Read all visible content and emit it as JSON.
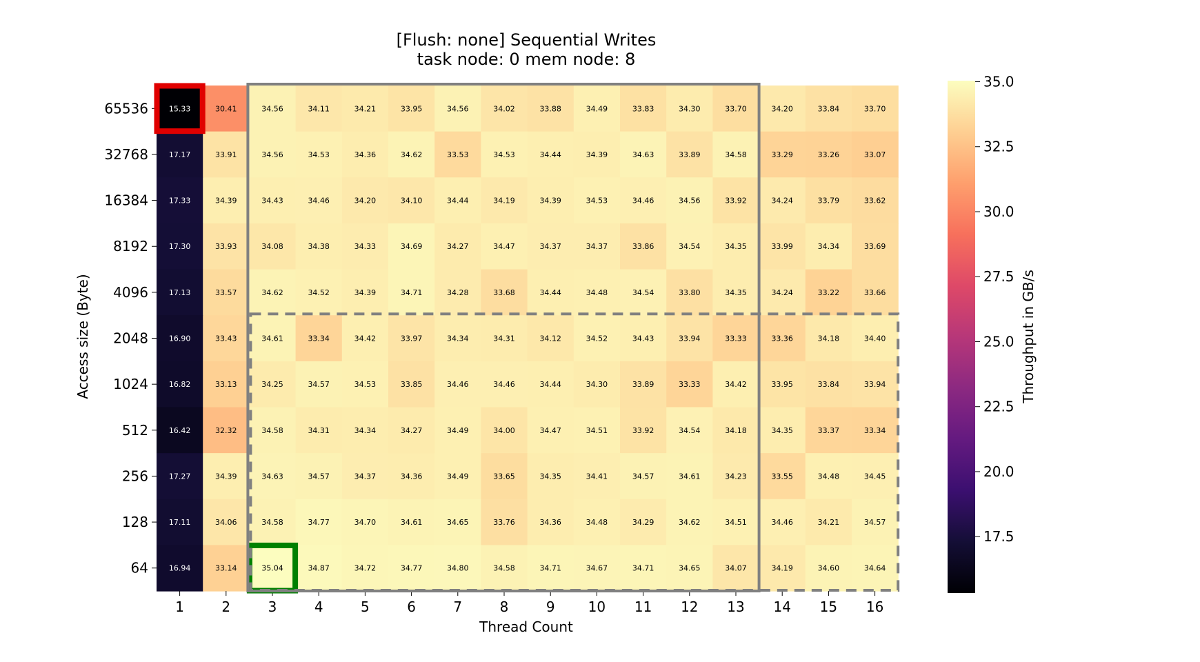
{
  "chart_data": {
    "type": "heatmap",
    "title": [
      "[Flush: none] Sequential Writes",
      "task node: 0 mem node: 8"
    ],
    "xlabel": "Thread Count",
    "ylabel": "Access size (Byte)",
    "x": [
      "1",
      "2",
      "3",
      "4",
      "5",
      "6",
      "7",
      "8",
      "9",
      "10",
      "11",
      "12",
      "13",
      "14",
      "15",
      "16"
    ],
    "y": [
      "65536",
      "32768",
      "16384",
      "8192",
      "4096",
      "2048",
      "1024",
      "512",
      "256",
      "128",
      "64"
    ],
    "values": [
      [
        15.33,
        30.41,
        34.56,
        34.11,
        34.21,
        33.95,
        34.56,
        34.02,
        33.88,
        34.49,
        33.83,
        34.3,
        33.7,
        34.2,
        33.84,
        33.7
      ],
      [
        17.17,
        33.91,
        34.56,
        34.53,
        34.36,
        34.62,
        33.53,
        34.53,
        34.44,
        34.39,
        34.63,
        33.89,
        34.58,
        33.29,
        33.26,
        33.07
      ],
      [
        17.33,
        34.39,
        34.43,
        34.46,
        34.2,
        34.1,
        34.44,
        34.19,
        34.39,
        34.53,
        34.46,
        34.56,
        33.92,
        34.24,
        33.79,
        33.62
      ],
      [
        17.3,
        33.93,
        34.08,
        34.38,
        34.33,
        34.69,
        34.27,
        34.47,
        34.37,
        34.37,
        33.86,
        34.54,
        34.35,
        33.99,
        34.34,
        33.69
      ],
      [
        17.13,
        33.57,
        34.62,
        34.52,
        34.39,
        34.71,
        34.28,
        33.68,
        34.44,
        34.48,
        34.54,
        33.8,
        34.35,
        34.24,
        33.22,
        33.66
      ],
      [
        16.9,
        33.43,
        34.61,
        33.34,
        34.42,
        33.97,
        34.34,
        34.31,
        34.12,
        34.52,
        34.43,
        33.94,
        33.33,
        33.36,
        34.18,
        34.4
      ],
      [
        16.82,
        33.13,
        34.25,
        34.57,
        34.53,
        33.85,
        34.46,
        34.46,
        34.44,
        34.3,
        33.89,
        33.33,
        34.42,
        33.95,
        33.84,
        33.94
      ],
      [
        16.42,
        32.32,
        34.58,
        34.31,
        34.34,
        34.27,
        34.49,
        34.0,
        34.47,
        34.51,
        33.92,
        34.54,
        34.18,
        34.35,
        33.37,
        33.34
      ],
      [
        17.27,
        34.39,
        34.63,
        34.57,
        34.37,
        34.36,
        34.49,
        33.65,
        34.35,
        34.41,
        34.57,
        34.61,
        34.23,
        33.55,
        34.48,
        34.45
      ],
      [
        17.11,
        34.06,
        34.58,
        34.77,
        34.7,
        34.61,
        34.65,
        33.76,
        34.36,
        34.48,
        34.29,
        34.62,
        34.51,
        34.46,
        34.21,
        34.57
      ],
      [
        16.94,
        33.14,
        35.04,
        34.87,
        34.72,
        34.77,
        34.8,
        34.58,
        34.71,
        34.67,
        34.71,
        34.65,
        34.07,
        34.19,
        34.6,
        34.64
      ]
    ],
    "colormap": "magma",
    "vmin": 15.33,
    "vmax": 35.04,
    "colorbar": {
      "label": "Throughput in GB/s",
      "ticks": [
        17.5,
        20.0,
        22.5,
        25.0,
        27.5,
        30.0,
        32.5,
        35.0
      ],
      "tick_labels": [
        "17.5",
        "20.0",
        "22.5",
        "25.0",
        "27.5",
        "30.0",
        "32.5",
        "35.0"
      ]
    },
    "annotations": [
      {
        "kind": "highlight-min",
        "color": "#e00000",
        "cell": {
          "x": "1",
          "y": "65536"
        }
      },
      {
        "kind": "highlight-max",
        "color": "#008000",
        "cell": {
          "x": "3",
          "y": "64"
        }
      },
      {
        "kind": "region-solid",
        "color": "#808080",
        "x_range": [
          "3",
          "13"
        ],
        "y_range": [
          "65536",
          "64"
        ]
      },
      {
        "kind": "region-dashed",
        "color": "#808080",
        "x_range": [
          "3",
          "16"
        ],
        "y_range": [
          "2048",
          "64"
        ]
      }
    ]
  }
}
